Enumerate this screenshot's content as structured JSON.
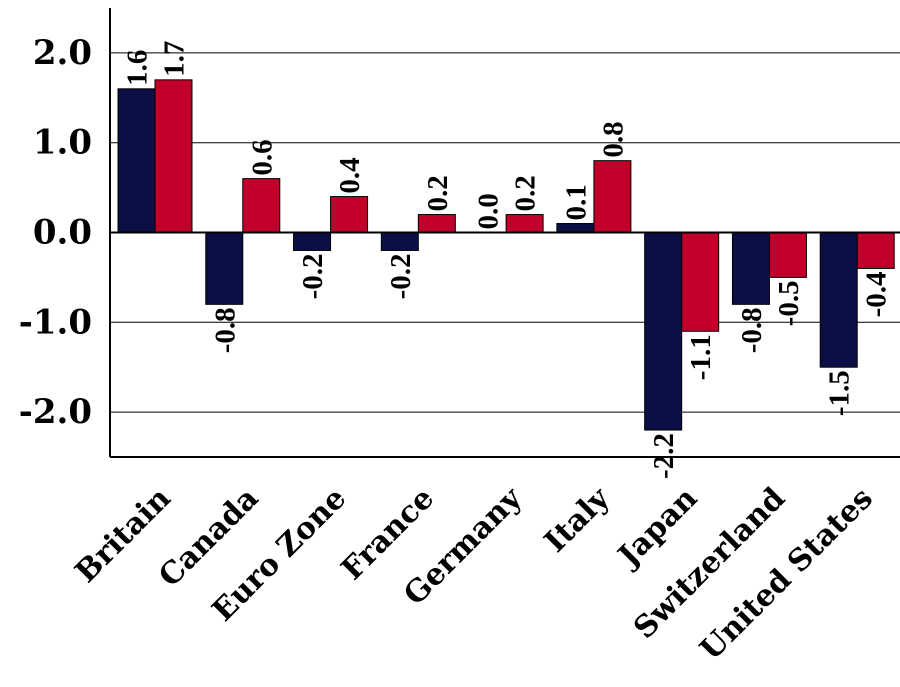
{
  "chart_data": {
    "type": "bar",
    "categories": [
      "Britain",
      "Canada",
      "Euro Zone",
      "France",
      "Germany",
      "Italy",
      "Japan",
      "Switzerland",
      "United States"
    ],
    "series": [
      {
        "values": [
          1.6,
          -0.8,
          -0.2,
          -0.2,
          0.0,
          0.1,
          -2.2,
          -0.8,
          -1.5
        ],
        "color": "#0b0f45"
      },
      {
        "values": [
          1.7,
          0.6,
          0.4,
          0.2,
          0.2,
          0.8,
          -1.1,
          -0.5,
          -0.4
        ],
        "color": "#c0002a"
      }
    ],
    "data_labels": [
      [
        "1.6",
        "-0.8",
        "-0.2",
        "-0.2",
        "0.0",
        "0.1",
        "-2.2",
        "-0.8",
        "-1.5"
      ],
      [
        "1.7",
        "0.6",
        "0.4",
        "0.2",
        "0.2",
        "0.8",
        "-1.1",
        "-0.5",
        "-0.4"
      ]
    ],
    "y_ticks": [
      2.0,
      1.0,
      0.0,
      -1.0,
      -2.0
    ],
    "y_tick_labels": [
      "2.0",
      "1.0",
      "0.0",
      "-1.0",
      "-2.0"
    ],
    "ylim": [
      -2.5,
      2.5
    ],
    "grid": true,
    "legend": "none",
    "title": "",
    "xlabel": "",
    "ylabel": ""
  }
}
